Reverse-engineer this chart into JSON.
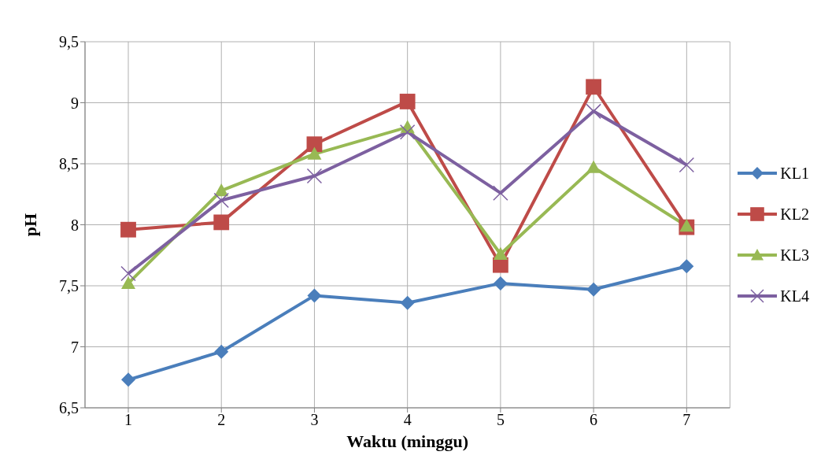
{
  "chart_data": {
    "type": "line",
    "xlabel": "Waktu (minggu)",
    "ylabel": "pH",
    "categories": [
      "1",
      "2",
      "3",
      "4",
      "5",
      "6",
      "7"
    ],
    "ylim": [
      6.5,
      9.5
    ],
    "yticks": [
      {
        "value": 6.5,
        "label": "6,5"
      },
      {
        "value": 7,
        "label": "7"
      },
      {
        "value": 7.5,
        "label": "7,5"
      },
      {
        "value": 8,
        "label": "8"
      },
      {
        "value": 8.5,
        "label": "8,5"
      },
      {
        "value": 9,
        "label": "9"
      },
      {
        "value": 9.5,
        "label": "9,5"
      }
    ],
    "grid": true,
    "legend": "right",
    "series": [
      {
        "name": "KL1",
        "color": "#4a7ebb",
        "marker": "diamond",
        "values": [
          6.73,
          6.96,
          7.42,
          7.36,
          7.52,
          7.47,
          7.66
        ]
      },
      {
        "name": "KL2",
        "color": "#be4b48",
        "marker": "square",
        "values": [
          7.96,
          8.02,
          8.66,
          9.01,
          7.67,
          9.13,
          7.98
        ]
      },
      {
        "name": "KL3",
        "color": "#98b954",
        "marker": "triangle",
        "values": [
          7.52,
          8.28,
          8.58,
          8.8,
          7.76,
          8.47,
          7.99
        ]
      },
      {
        "name": "KL4",
        "color": "#7d60a0",
        "marker": "cross",
        "values": [
          7.6,
          8.2,
          8.4,
          8.76,
          8.26,
          8.93,
          8.49
        ]
      }
    ]
  }
}
